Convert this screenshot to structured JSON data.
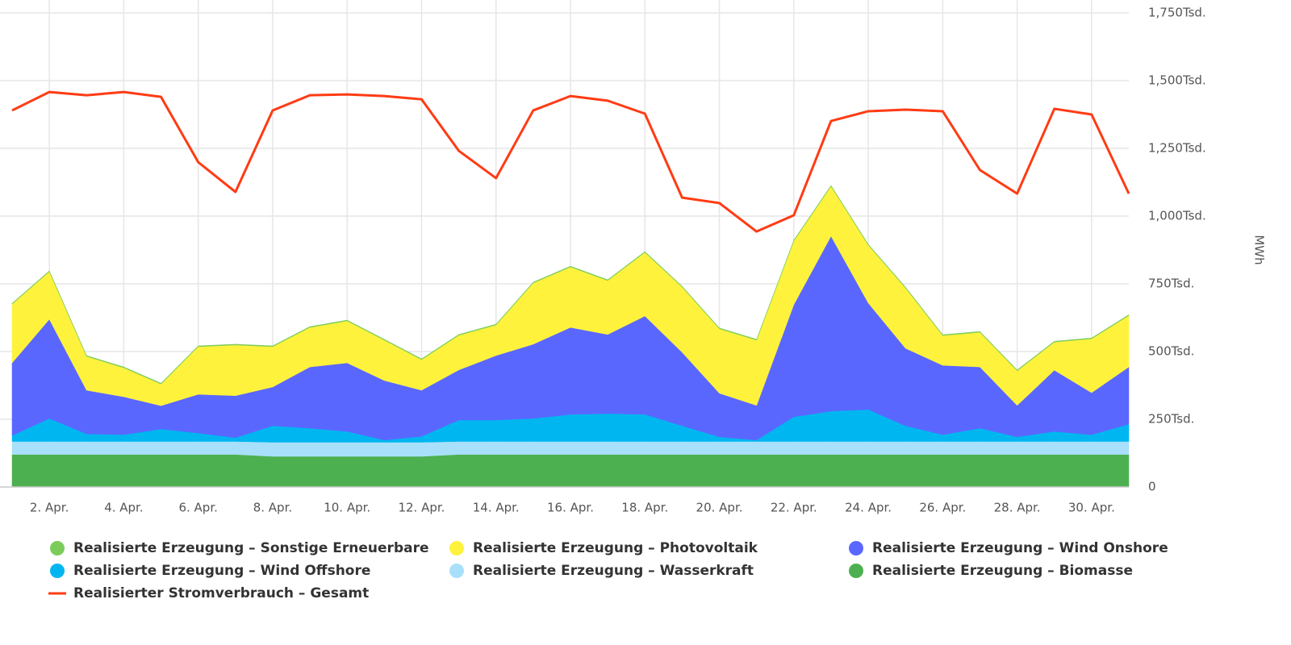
{
  "chart_data": {
    "type": "area",
    "stacked": true,
    "grid": true,
    "legend": "bottom",
    "y_label": "MWh",
    "categories": [
      null,
      "2. Apr.",
      null,
      "4. Apr.",
      null,
      "6. Apr.",
      null,
      "8. Apr.",
      null,
      "10. Apr.",
      null,
      "12. Apr.",
      null,
      "14. Apr.",
      null,
      "16. Apr.",
      null,
      "18. Apr.",
      null,
      "20. Apr.",
      null,
      "22. Apr.",
      null,
      "24. Apr.",
      null,
      "26. Apr.",
      null,
      "28. Apr.",
      null,
      "30. Apr.",
      null
    ],
    "ylim": [
      0,
      1750000
    ],
    "yticks": [
      0,
      {
        "value": 250000,
        "label": "250Tsd."
      },
      {
        "value": 500000,
        "label": "500Tsd."
      },
      {
        "value": 750000,
        "label": "750Tsd."
      },
      {
        "value": 1000000,
        "label": "1,000Tsd."
      },
      {
        "value": 1250000,
        "label": "1,250Tsd."
      },
      {
        "value": 1500000,
        "label": "1,500Tsd."
      },
      {
        "value": 1750000,
        "label": "1,750Tsd."
      }
    ],
    "series": [
      {
        "name": "Realisierte Erzeugung – Sonstige Erneuerbare",
        "type": "area",
        "color": "#7ccc5a",
        "values": [
          3000,
          3000,
          3000,
          3000,
          3000,
          3000,
          3000,
          3000,
          3000,
          3000,
          3000,
          3000,
          3000,
          3000,
          3000,
          3000,
          3000,
          3000,
          3000,
          3000,
          3000,
          3000,
          3000,
          3000,
          3000,
          3000,
          3000,
          3000,
          3000,
          3000,
          3000
        ]
      },
      {
        "name": "Realisierte Erzeugung – Photovoltaik",
        "type": "area",
        "color": "#fff23d",
        "values": [
          217000,
          176000,
          125000,
          107000,
          80000,
          176000,
          187000,
          149000,
          146000,
          155000,
          149000,
          113000,
          128000,
          113000,
          226000,
          223000,
          199000,
          235000,
          241000,
          238000,
          241000,
          235000,
          184000,
          214000,
          223000,
          110000,
          128000,
          128000,
          104000,
          199000,
          190000
        ]
      },
      {
        "name": "Realisierte Erzeugung – Wind Onshore",
        "type": "area",
        "color": "#5a67ff",
        "values": [
          268000,
          366000,
          161000,
          140000,
          86000,
          143000,
          155000,
          143000,
          226000,
          253000,
          220000,
          170000,
          185000,
          238000,
          274000,
          321000,
          292000,
          363000,
          271000,
          161000,
          128000,
          414000,
          646000,
          393000,
          286000,
          256000,
          226000,
          116000,
          226000,
          155000,
          211000
        ]
      },
      {
        "name": "Realisierte Erzeugung – Wind Offshore",
        "type": "area",
        "color": "#00b6f0",
        "values": [
          22000,
          85000,
          28000,
          25000,
          46000,
          31000,
          14000,
          61000,
          52000,
          40000,
          8000,
          22000,
          79000,
          79000,
          85000,
          100000,
          103000,
          100000,
          58000,
          17000,
          5000,
          91000,
          112000,
          118000,
          58000,
          25000,
          49000,
          17000,
          37000,
          25000,
          64000
        ]
      },
      {
        "name": "Realisierte Erzeugung – Wasserkraft",
        "type": "area",
        "color": "#a8e0fb",
        "values": [
          48000,
          48000,
          48000,
          48000,
          48000,
          48000,
          48000,
          52000,
          52000,
          52000,
          52000,
          52000,
          48000,
          48000,
          48000,
          48000,
          48000,
          48000,
          48000,
          48000,
          48000,
          48000,
          48000,
          48000,
          48000,
          48000,
          48000,
          48000,
          48000,
          48000,
          48000
        ]
      },
      {
        "name": "Realisierte Erzeugung – Biomasse",
        "type": "area",
        "color": "#4db050",
        "values": [
          120000,
          120000,
          120000,
          120000,
          120000,
          120000,
          120000,
          113000,
          113000,
          113000,
          113000,
          113000,
          120000,
          120000,
          120000,
          120000,
          120000,
          120000,
          120000,
          120000,
          120000,
          120000,
          120000,
          120000,
          120000,
          120000,
          120000,
          120000,
          120000,
          120000,
          120000
        ]
      },
      {
        "name": "Realisierter Stromverbrauch – Gesamt",
        "type": "line",
        "color": "#ff3b14",
        "values": [
          1390000,
          1458000,
          1446000,
          1458000,
          1440000,
          1199000,
          1089000,
          1390000,
          1446000,
          1449000,
          1443000,
          1431000,
          1241000,
          1140000,
          1390000,
          1443000,
          1426000,
          1378000,
          1068000,
          1048000,
          943000,
          1003000,
          1351000,
          1387000,
          1393000,
          1387000,
          1170000,
          1083000,
          1396000,
          1375000,
          1083000
        ]
      }
    ]
  }
}
